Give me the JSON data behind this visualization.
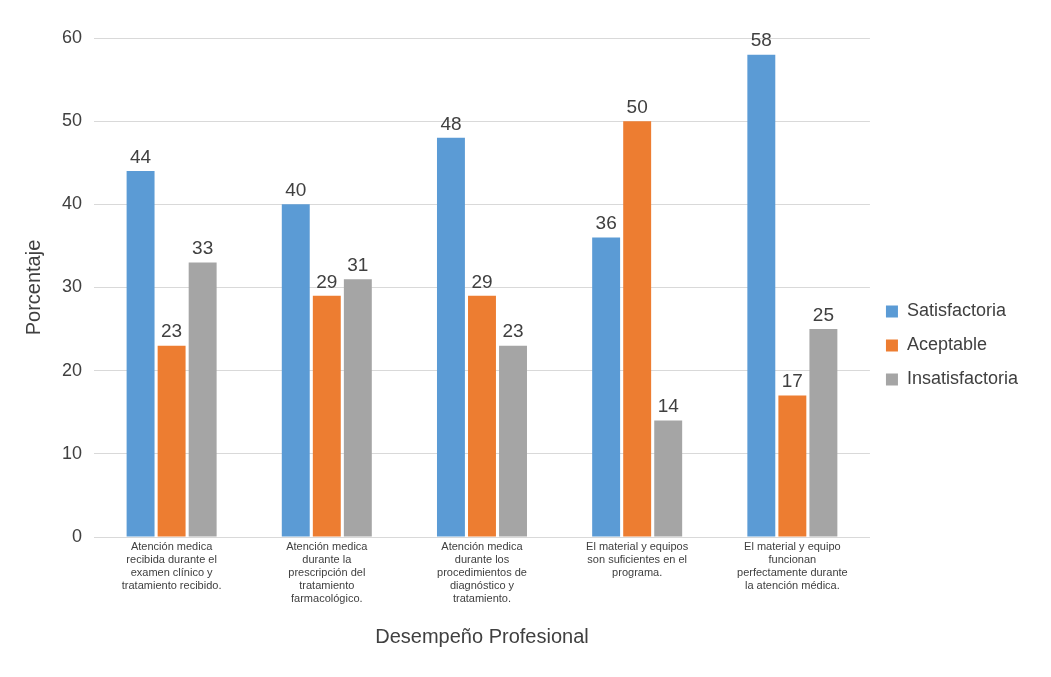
{
  "chart_data": {
    "type": "bar",
    "xlabel": "Desempeño Profesional",
    "ylabel": "Porcentaje",
    "categories": [
      "Atención medica recibida durante el examen clínico y tratamiento recibido.",
      "Atención medica durante la prescripción del tratamiento farmacológico.",
      "Atención medica durante los procedimientos de diagnóstico y tratamiento.",
      "El material y equipos son suficientes en el programa.",
      "El material y equipo funcionan perfectamente durante la atención médica."
    ],
    "series": [
      {
        "name": "Satisfactoria",
        "color": "#5b9bd5",
        "values": [
          44,
          40,
          48,
          36,
          58
        ]
      },
      {
        "name": "Aceptable",
        "color": "#ed7d31",
        "values": [
          23,
          29,
          29,
          50,
          17
        ]
      },
      {
        "name": "Insatisfactoria",
        "color": "#a5a5a5",
        "values": [
          33,
          31,
          23,
          14,
          25
        ]
      }
    ],
    "ylim": [
      0,
      60
    ],
    "yticks": [
      0,
      10,
      20,
      30,
      40,
      50,
      60
    ],
    "grid": "y",
    "legend": "right",
    "data_labels": true
  }
}
